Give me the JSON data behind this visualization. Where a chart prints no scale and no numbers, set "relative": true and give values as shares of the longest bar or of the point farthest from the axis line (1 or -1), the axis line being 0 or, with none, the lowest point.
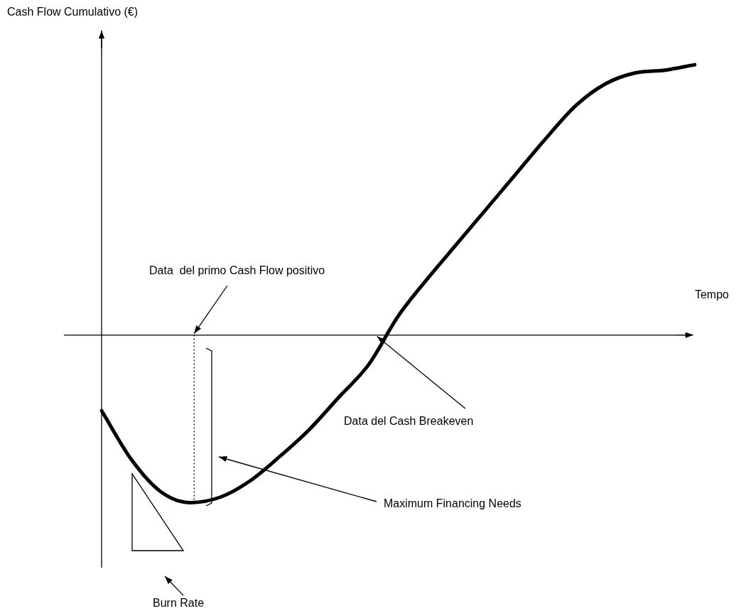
{
  "chart_data": {
    "type": "line",
    "relative": true,
    "xlabel": "Tempo",
    "ylabel": "Cash Flow Cumulativo (€)",
    "categories": [
      null,
      null,
      null,
      null,
      null,
      null,
      null,
      null,
      null,
      null,
      null,
      null,
      null,
      null,
      null,
      null,
      null,
      null,
      null,
      null,
      null
    ],
    "series": [
      {
        "color": "#000000",
        "values": [
          -0.28,
          -0.46,
          -0.58,
          -0.62,
          -0.6,
          -0.54,
          -0.45,
          -0.35,
          -0.23,
          -0.11,
          0.07,
          0.21,
          0.34,
          0.47,
          0.6,
          0.73,
          0.85,
          0.93,
          0.97,
          0.98,
          1
        ]
      }
    ],
    "marker": "none",
    "line_style": "solid",
    "legend": false,
    "annotations": [
      "Data  del primo Cash Flow positivo",
      "Data del Cash Breakeven",
      "Maximum Financing Needs",
      "Burn Rate"
    ]
  }
}
